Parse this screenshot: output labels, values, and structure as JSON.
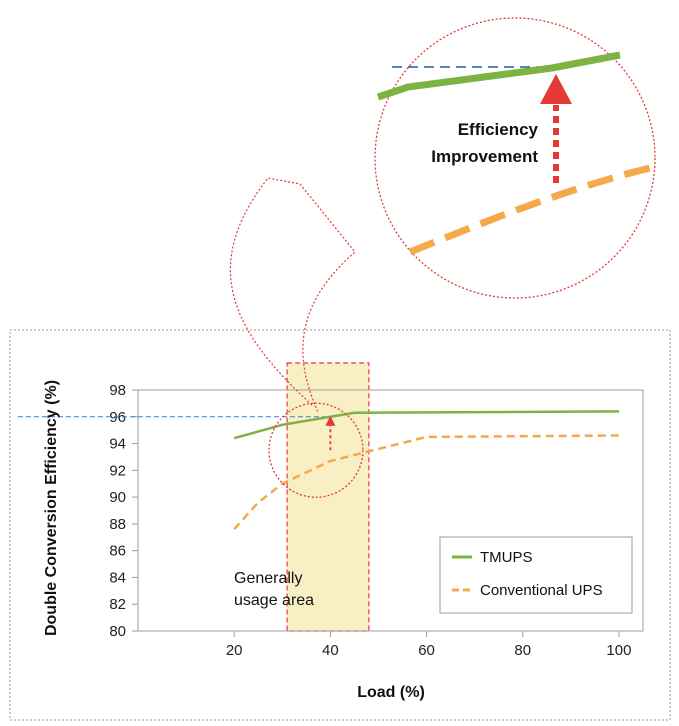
{
  "chart_data": {
    "type": "line",
    "xlabel": "Load (%)",
    "ylabel": "Double Conversion Efficiency (%)",
    "xlim": [
      0,
      105
    ],
    "ylim": [
      80,
      98
    ],
    "xticks": [
      20,
      40,
      60,
      80,
      100
    ],
    "yticks": [
      80,
      82,
      84,
      86,
      88,
      90,
      92,
      94,
      96,
      98
    ],
    "grid": false,
    "legend_position": "bottom-right",
    "series": [
      {
        "name": "TMUPS",
        "color": "#7cb342",
        "style": "solid",
        "x": [
          20,
          30,
          45,
          100
        ],
        "y": [
          94.4,
          95.4,
          96.3,
          96.4
        ]
      },
      {
        "name": "Conventional UPS",
        "color": "#f5a94a",
        "style": "dashed",
        "x": [
          20,
          25,
          30,
          40,
          50,
          60,
          100
        ],
        "y": [
          87.6,
          89.6,
          91.0,
          92.7,
          93.6,
          94.5,
          94.6
        ]
      }
    ],
    "reference_line": {
      "y": 96,
      "x_start": 0,
      "x_end": 40,
      "color": "#3a7bd5"
    },
    "usage_region": {
      "x_start": 31,
      "x_end": 48,
      "label_line1": "Generally",
      "label_line2": "usage area",
      "fill": "#f8efc4",
      "border": "#e53935"
    },
    "improvement_arrow": {
      "x": 40,
      "y_from": 93.5,
      "y_to": 96
    },
    "zoom_circle": {
      "center": [
        37,
        93.5
      ],
      "label_line1": "Efficiency",
      "label_line2": "Improvement"
    }
  }
}
